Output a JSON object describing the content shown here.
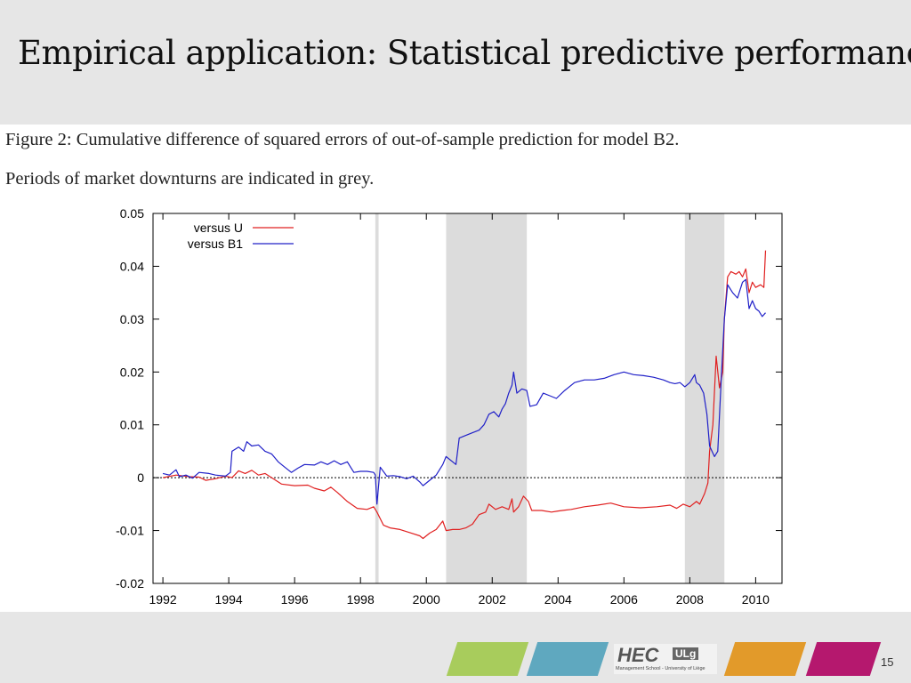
{
  "slide": {
    "title": "Empirical application: Statistical predictive performance",
    "page_number": "15"
  },
  "figure": {
    "caption_line1": "Figure 2: Cumulative difference of squared errors of out-of-sample prediction for model B2.",
    "caption_line2": "Periods of market downturns are indicated in grey."
  },
  "footer": {
    "bar_colors": [
      "#a8cc5c",
      "#5fa8bf",
      "#e29a2a",
      "#b5186e"
    ],
    "logo_text": "HEC",
    "logo_badge": "ULg",
    "logo_subtitle": "Management School - University of Liège"
  },
  "chart_data": {
    "type": "line",
    "xlim": [
      1991.7,
      2010.8
    ],
    "ylim": [
      -0.02,
      0.05
    ],
    "x_ticks": [
      1992,
      1994,
      1996,
      1998,
      2000,
      2002,
      2004,
      2006,
      2008,
      2010
    ],
    "x_tick_labels": [
      "1992",
      "1994",
      "1996",
      "1998",
      "2000",
      "2002",
      "2004",
      "2006",
      "2008",
      "2010"
    ],
    "y_ticks": [
      -0.02,
      -0.01,
      0,
      0.01,
      0.02,
      0.03,
      0.04,
      0.05
    ],
    "y_tick_labels": [
      "-0.02",
      "-0.01",
      "0",
      "0.01",
      "0.02",
      "0.03",
      "0.04",
      "0.05"
    ],
    "legend_position": "top-left",
    "zero_line": true,
    "shaded_periods": [
      [
        1998.45,
        1998.55
      ],
      [
        2000.6,
        2003.05
      ],
      [
        2007.85,
        2009.05
      ]
    ],
    "shade_color": "#dcdcdc",
    "series": [
      {
        "name": "versus U",
        "color": "#e02020",
        "points": [
          [
            1992.0,
            0.0
          ],
          [
            1992.4,
            0.0005
          ],
          [
            1992.8,
            0.0002
          ],
          [
            1993.1,
            0.0001
          ],
          [
            1993.3,
            -0.0005
          ],
          [
            1993.6,
            -0.0002
          ],
          [
            1993.9,
            0.0003
          ],
          [
            1994.1,
            0.0
          ],
          [
            1994.3,
            0.0013
          ],
          [
            1994.5,
            0.0008
          ],
          [
            1994.7,
            0.0014
          ],
          [
            1994.9,
            0.0005
          ],
          [
            1995.1,
            0.0008
          ],
          [
            1995.3,
            0.0
          ],
          [
            1995.6,
            -0.0012
          ],
          [
            1996.0,
            -0.0015
          ],
          [
            1996.4,
            -0.0014
          ],
          [
            1996.6,
            -0.002
          ],
          [
            1996.9,
            -0.0025
          ],
          [
            1997.1,
            -0.0018
          ],
          [
            1997.3,
            -0.0028
          ],
          [
            1997.6,
            -0.0045
          ],
          [
            1997.9,
            -0.0058
          ],
          [
            1998.2,
            -0.006
          ],
          [
            1998.4,
            -0.0055
          ],
          [
            1998.5,
            -0.0065
          ],
          [
            1998.7,
            -0.009
          ],
          [
            1998.9,
            -0.0095
          ],
          [
            1999.2,
            -0.0098
          ],
          [
            1999.5,
            -0.0104
          ],
          [
            1999.8,
            -0.011
          ],
          [
            1999.9,
            -0.0115
          ],
          [
            2000.1,
            -0.0105
          ],
          [
            2000.3,
            -0.0098
          ],
          [
            2000.4,
            -0.009
          ],
          [
            2000.5,
            -0.0082
          ],
          [
            2000.6,
            -0.01
          ],
          [
            2000.8,
            -0.0098
          ],
          [
            2001.0,
            -0.0098
          ],
          [
            2001.2,
            -0.0095
          ],
          [
            2001.4,
            -0.0088
          ],
          [
            2001.6,
            -0.007
          ],
          [
            2001.8,
            -0.0065
          ],
          [
            2001.9,
            -0.005
          ],
          [
            2002.1,
            -0.006
          ],
          [
            2002.3,
            -0.0055
          ],
          [
            2002.5,
            -0.006
          ],
          [
            2002.6,
            -0.004
          ],
          [
            2002.65,
            -0.0065
          ],
          [
            2002.8,
            -0.0055
          ],
          [
            2002.95,
            -0.0035
          ],
          [
            2003.1,
            -0.0045
          ],
          [
            2003.2,
            -0.0062
          ],
          [
            2003.5,
            -0.0062
          ],
          [
            2003.8,
            -0.0065
          ],
          [
            2004.0,
            -0.0063
          ],
          [
            2004.4,
            -0.006
          ],
          [
            2004.8,
            -0.0055
          ],
          [
            2005.2,
            -0.0052
          ],
          [
            2005.6,
            -0.0048
          ],
          [
            2006.0,
            -0.0055
          ],
          [
            2006.5,
            -0.0057
          ],
          [
            2007.0,
            -0.0055
          ],
          [
            2007.4,
            -0.0052
          ],
          [
            2007.6,
            -0.0058
          ],
          [
            2007.8,
            -0.005
          ],
          [
            2008.0,
            -0.0055
          ],
          [
            2008.2,
            -0.0045
          ],
          [
            2008.3,
            -0.005
          ],
          [
            2008.45,
            -0.003
          ],
          [
            2008.55,
            -0.001
          ],
          [
            2008.6,
            0.005
          ],
          [
            2008.7,
            0.01
          ],
          [
            2008.8,
            0.023
          ],
          [
            2008.9,
            0.017
          ],
          [
            2009.0,
            0.02
          ],
          [
            2009.05,
            0.03
          ],
          [
            2009.15,
            0.038
          ],
          [
            2009.25,
            0.039
          ],
          [
            2009.4,
            0.0385
          ],
          [
            2009.5,
            0.039
          ],
          [
            2009.6,
            0.038
          ],
          [
            2009.7,
            0.0395
          ],
          [
            2009.8,
            0.035
          ],
          [
            2009.9,
            0.037
          ],
          [
            2010.0,
            0.036
          ],
          [
            2010.15,
            0.0365
          ],
          [
            2010.25,
            0.036
          ],
          [
            2010.3,
            0.043
          ]
        ]
      },
      {
        "name": "versus B1",
        "color": "#2020c8",
        "points": [
          [
            1992.0,
            0.0008
          ],
          [
            1992.2,
            0.0005
          ],
          [
            1992.4,
            0.0015
          ],
          [
            1992.5,
            0.0002
          ],
          [
            1992.7,
            0.0005
          ],
          [
            1992.9,
            -0.0001
          ],
          [
            1993.1,
            0.001
          ],
          [
            1993.4,
            0.0008
          ],
          [
            1993.6,
            0.0005
          ],
          [
            1993.9,
            0.0003
          ],
          [
            1994.05,
            0.001
          ],
          [
            1994.1,
            0.005
          ],
          [
            1994.3,
            0.0058
          ],
          [
            1994.45,
            0.005
          ],
          [
            1994.55,
            0.0068
          ],
          [
            1994.7,
            0.006
          ],
          [
            1994.9,
            0.0062
          ],
          [
            1995.1,
            0.005
          ],
          [
            1995.3,
            0.0045
          ],
          [
            1995.5,
            0.003
          ],
          [
            1995.7,
            0.002
          ],
          [
            1995.9,
            0.001
          ],
          [
            1996.1,
            0.0018
          ],
          [
            1996.3,
            0.0025
          ],
          [
            1996.6,
            0.0024
          ],
          [
            1996.8,
            0.003
          ],
          [
            1997.0,
            0.0025
          ],
          [
            1997.2,
            0.0032
          ],
          [
            1997.4,
            0.0025
          ],
          [
            1997.6,
            0.003
          ],
          [
            1997.7,
            0.002
          ],
          [
            1997.8,
            0.001
          ],
          [
            1998.0,
            0.0012
          ],
          [
            1998.2,
            0.0012
          ],
          [
            1998.4,
            0.001
          ],
          [
            1998.45,
            0.0005
          ],
          [
            1998.5,
            -0.005
          ],
          [
            1998.6,
            0.002
          ],
          [
            1998.8,
            0.0003
          ],
          [
            1999.0,
            0.0004
          ],
          [
            1999.2,
            0.0002
          ],
          [
            1999.4,
            -0.0002
          ],
          [
            1999.6,
            0.0003
          ],
          [
            1999.8,
            -0.0008
          ],
          [
            1999.9,
            -0.0015
          ],
          [
            2000.1,
            -0.0005
          ],
          [
            2000.3,
            0.0005
          ],
          [
            2000.5,
            0.0025
          ],
          [
            2000.6,
            0.004
          ],
          [
            2000.8,
            0.003
          ],
          [
            2000.9,
            0.0025
          ],
          [
            2001.0,
            0.0075
          ],
          [
            2001.2,
            0.008
          ],
          [
            2001.4,
            0.0085
          ],
          [
            2001.6,
            0.009
          ],
          [
            2001.75,
            0.01
          ],
          [
            2001.9,
            0.012
          ],
          [
            2002.05,
            0.0125
          ],
          [
            2002.2,
            0.0115
          ],
          [
            2002.3,
            0.013
          ],
          [
            2002.4,
            0.014
          ],
          [
            2002.5,
            0.016
          ],
          [
            2002.6,
            0.0175
          ],
          [
            2002.65,
            0.02
          ],
          [
            2002.75,
            0.016
          ],
          [
            2002.9,
            0.0168
          ],
          [
            2003.05,
            0.0165
          ],
          [
            2003.15,
            0.0135
          ],
          [
            2003.35,
            0.0138
          ],
          [
            2003.55,
            0.016
          ],
          [
            2003.75,
            0.0155
          ],
          [
            2003.95,
            0.015
          ],
          [
            2004.2,
            0.0165
          ],
          [
            2004.5,
            0.018
          ],
          [
            2004.8,
            0.0185
          ],
          [
            2005.1,
            0.0185
          ],
          [
            2005.4,
            0.0188
          ],
          [
            2005.7,
            0.0195
          ],
          [
            2006.0,
            0.02
          ],
          [
            2006.3,
            0.0195
          ],
          [
            2006.6,
            0.0193
          ],
          [
            2006.9,
            0.019
          ],
          [
            2007.2,
            0.0185
          ],
          [
            2007.4,
            0.018
          ],
          [
            2007.55,
            0.0178
          ],
          [
            2007.7,
            0.018
          ],
          [
            2007.85,
            0.0172
          ],
          [
            2008.0,
            0.018
          ],
          [
            2008.15,
            0.0195
          ],
          [
            2008.2,
            0.018
          ],
          [
            2008.3,
            0.0175
          ],
          [
            2008.42,
            0.016
          ],
          [
            2008.52,
            0.012
          ],
          [
            2008.6,
            0.006
          ],
          [
            2008.75,
            0.004
          ],
          [
            2008.85,
            0.005
          ],
          [
            2008.95,
            0.018
          ],
          [
            2009.05,
            0.03
          ],
          [
            2009.15,
            0.0365
          ],
          [
            2009.3,
            0.035
          ],
          [
            2009.45,
            0.034
          ],
          [
            2009.6,
            0.037
          ],
          [
            2009.7,
            0.0375
          ],
          [
            2009.8,
            0.032
          ],
          [
            2009.9,
            0.0335
          ],
          [
            2010.0,
            0.032
          ],
          [
            2010.1,
            0.0315
          ],
          [
            2010.2,
            0.0305
          ],
          [
            2010.3,
            0.0312
          ]
        ]
      }
    ]
  }
}
